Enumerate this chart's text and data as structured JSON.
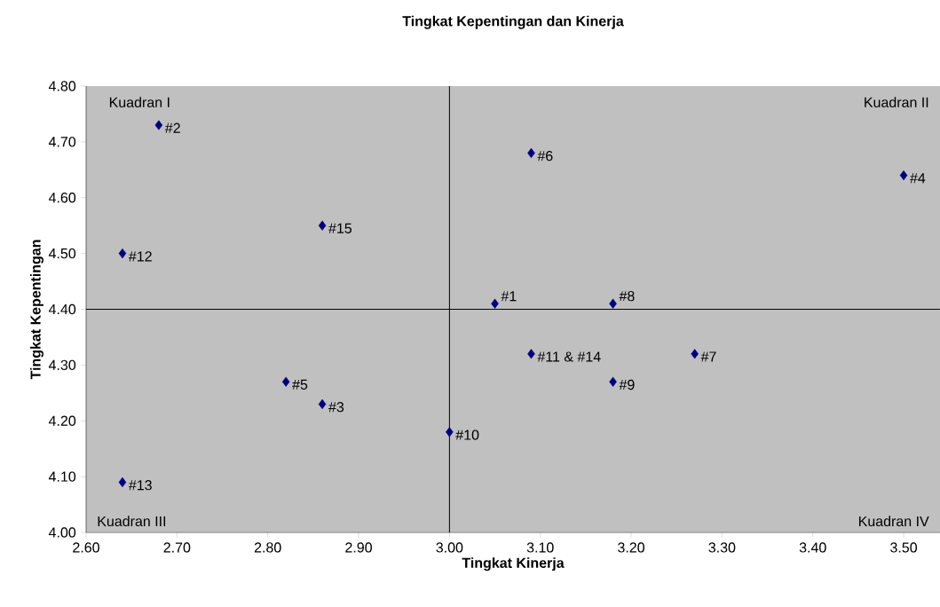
{
  "chart_data": {
    "type": "scatter",
    "title": "Tingkat Kepentingan dan Kinerja",
    "xlabel": "Tingkat Kinerja",
    "ylabel": "Tingkat Kepentingan",
    "x": [
      3.05,
      2.68,
      2.86,
      3.5,
      2.82,
      3.09,
      3.27,
      3.18,
      3.18,
      3.0,
      3.09,
      2.64,
      2.64,
      2.86
    ],
    "series": [
      {
        "color": "#000080",
        "values": [
          4.41,
          4.73,
          4.23,
          4.64,
          4.27,
          4.68,
          4.32,
          4.41,
          4.27,
          4.18,
          4.32,
          4.5,
          4.09,
          4.55
        ]
      }
    ],
    "marker": "diamond",
    "grid": false,
    "xlim": [
      2.6,
      3.54
    ],
    "ylim": [
      4.0,
      4.8
    ],
    "xticks": [
      {
        "value": 2.6,
        "label": "2.60"
      },
      {
        "value": 2.7,
        "label": "2.70"
      },
      {
        "value": 2.8,
        "label": "2.80"
      },
      {
        "value": 2.9,
        "label": "2.90"
      },
      {
        "value": 3.0,
        "label": "3.00"
      },
      {
        "value": 3.1,
        "label": "3.10"
      },
      {
        "value": 3.2,
        "label": "3.20"
      },
      {
        "value": 3.3,
        "label": "3.30"
      },
      {
        "value": 3.4,
        "label": "3.40"
      },
      {
        "value": 3.5,
        "label": "3.50"
      }
    ],
    "yticks": [
      {
        "value": 4.0,
        "label": "4.00"
      },
      {
        "value": 4.1,
        "label": "4.10"
      },
      {
        "value": 4.2,
        "label": "4.20"
      },
      {
        "value": 4.3,
        "label": "4.30"
      },
      {
        "value": 4.4,
        "label": "4.40"
      },
      {
        "value": 4.5,
        "label": "4.50"
      },
      {
        "value": 4.6,
        "label": "4.60"
      },
      {
        "value": 4.7,
        "label": "4.70"
      },
      {
        "value": 4.8,
        "label": "4.80"
      }
    ],
    "ref_lines": [
      {
        "axis": "x",
        "value": 3.0,
        "color": "#000000"
      },
      {
        "axis": "y",
        "value": 4.4,
        "color": "#000000"
      }
    ],
    "annotations": [
      "Kuadran I",
      "Kuadran II",
      "Kuadran III",
      "Kuadran IV",
      {
        "text": "#1",
        "x": 3.05,
        "y": 4.41
      },
      {
        "text": "#2",
        "x": 2.68,
        "y": 4.73
      },
      {
        "text": "#3",
        "x": 2.86,
        "y": 4.23
      },
      {
        "text": "#4",
        "x": 3.5,
        "y": 4.64
      },
      {
        "text": "#5",
        "x": 2.82,
        "y": 4.27
      },
      {
        "text": "#6",
        "x": 3.09,
        "y": 4.68
      },
      {
        "text": "#7",
        "x": 3.27,
        "y": 4.32
      },
      {
        "text": "#8",
        "x": 3.18,
        "y": 4.41
      },
      {
        "text": "#9",
        "x": 3.18,
        "y": 4.27
      },
      {
        "text": "#10",
        "x": 3.0,
        "y": 4.18
      },
      {
        "text": "#11 & #14",
        "x": 3.09,
        "y": 4.32
      },
      {
        "text": "#12",
        "x": 2.64,
        "y": 4.5
      },
      {
        "text": "#13",
        "x": 2.64,
        "y": 4.09
      },
      {
        "text": "#15",
        "x": 2.86,
        "y": 4.55
      }
    ]
  }
}
